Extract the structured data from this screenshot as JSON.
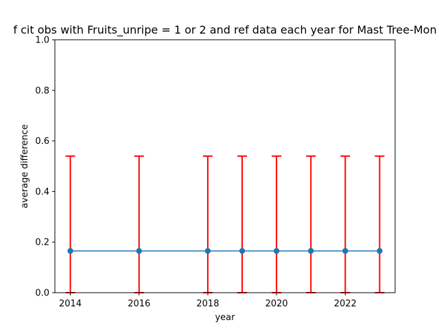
{
  "chart_data": {
    "type": "line",
    "title": "f cit obs with Fruits_unripe = 1 or 2 and ref data each year for Mast Tree-Mon",
    "xlabel": "year",
    "ylabel": "average difference",
    "xlim": [
      2013.55,
      2023.45
    ],
    "ylim": [
      0.0,
      1.0
    ],
    "x_ticks": [
      2014,
      2016,
      2018,
      2020,
      2022
    ],
    "y_ticks": [
      0.0,
      0.2,
      0.4,
      0.6,
      0.8,
      1.0
    ],
    "grid": false,
    "series": [
      {
        "x": [
          2014,
          2016,
          2018,
          2019,
          2020,
          2021,
          2022,
          2023
        ],
        "y": [
          0.165,
          0.165,
          0.165,
          0.165,
          0.165,
          0.165,
          0.165,
          0.165
        ],
        "error_low": [
          0.0,
          0.0,
          0.0,
          0.0,
          0.0,
          0.0,
          0.0,
          0.0
        ],
        "error_high": [
          0.54,
          0.54,
          0.54,
          0.54,
          0.54,
          0.54,
          0.54,
          0.54
        ]
      }
    ],
    "colors": {
      "line": "#1f77b4",
      "marker": "#1f77b4",
      "errorbar": "#ff0000"
    }
  }
}
